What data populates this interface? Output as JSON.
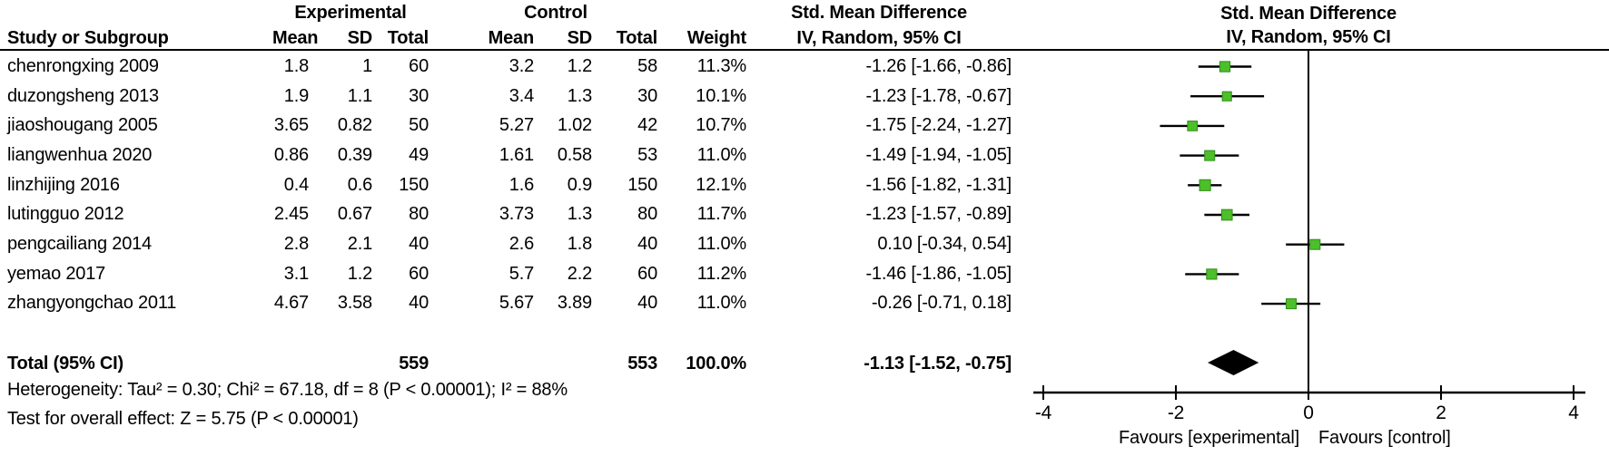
{
  "header": {
    "group_experimental": "Experimental",
    "group_control": "Control",
    "study": "Study or Subgroup",
    "mean": "Mean",
    "sd": "SD",
    "total": "Total",
    "weight": "Weight",
    "smd_line1": "Std. Mean Difference",
    "smd_line2": "IV, Random, 95% CI",
    "plot_line1": "Std. Mean Difference",
    "plot_line2": "IV, Random, 95% CI"
  },
  "chart_data": {
    "type": "forest",
    "effect_measure": "Std. Mean Difference",
    "model": "IV, Random, 95% CI",
    "axis": {
      "ticks": [
        -4,
        -2,
        0,
        2,
        4
      ],
      "xlim": [
        -4.3,
        4.5
      ],
      "favours_left": "Favours [experimental]",
      "favours_right": "Favours [control]"
    },
    "marker_color": "#4cbf2a",
    "marker_border": "#2f8c17",
    "diamond_color": "#000000",
    "studies": [
      {
        "label": "chenrongxing 2009",
        "mean_e": "1.8",
        "sd_e": "1",
        "total_e": "60",
        "mean_c": "3.2",
        "sd_c": "1.2",
        "total_c": "58",
        "weight": "11.3%",
        "weight_pct": 11.3,
        "ci_text": "-1.26 [-1.66, -0.86]",
        "smd": -1.26,
        "lo": -1.66,
        "hi": -0.86
      },
      {
        "label": "duzongsheng 2013",
        "mean_e": "1.9",
        "sd_e": "1.1",
        "total_e": "30",
        "mean_c": "3.4",
        "sd_c": "1.3",
        "total_c": "30",
        "weight": "10.1%",
        "weight_pct": 10.1,
        "ci_text": "-1.23 [-1.78, -0.67]",
        "smd": -1.23,
        "lo": -1.78,
        "hi": -0.67
      },
      {
        "label": "jiaoshougang 2005",
        "mean_e": "3.65",
        "sd_e": "0.82",
        "total_e": "50",
        "mean_c": "5.27",
        "sd_c": "1.02",
        "total_c": "42",
        "weight": "10.7%",
        "weight_pct": 10.7,
        "ci_text": "-1.75 [-2.24, -1.27]",
        "smd": -1.75,
        "lo": -2.24,
        "hi": -1.27
      },
      {
        "label": "liangwenhua 2020",
        "mean_e": "0.86",
        "sd_e": "0.39",
        "total_e": "49",
        "mean_c": "1.61",
        "sd_c": "0.58",
        "total_c": "53",
        "weight": "11.0%",
        "weight_pct": 11.0,
        "ci_text": "-1.49 [-1.94, -1.05]",
        "smd": -1.49,
        "lo": -1.94,
        "hi": -1.05
      },
      {
        "label": "linzhijing 2016",
        "mean_e": "0.4",
        "sd_e": "0.6",
        "total_e": "150",
        "mean_c": "1.6",
        "sd_c": "0.9",
        "total_c": "150",
        "weight": "12.1%",
        "weight_pct": 12.1,
        "ci_text": "-1.56 [-1.82, -1.31]",
        "smd": -1.56,
        "lo": -1.82,
        "hi": -1.31
      },
      {
        "label": "lutingguo 2012",
        "mean_e": "2.45",
        "sd_e": "0.67",
        "total_e": "80",
        "mean_c": "3.73",
        "sd_c": "1.3",
        "total_c": "80",
        "weight": "11.7%",
        "weight_pct": 11.7,
        "ci_text": "-1.23 [-1.57, -0.89]",
        "smd": -1.23,
        "lo": -1.57,
        "hi": -0.89
      },
      {
        "label": "pengcailiang 2014",
        "mean_e": "2.8",
        "sd_e": "2.1",
        "total_e": "40",
        "mean_c": "2.6",
        "sd_c": "1.8",
        "total_c": "40",
        "weight": "11.0%",
        "weight_pct": 11.0,
        "ci_text": "0.10 [-0.34, 0.54]",
        "smd": 0.1,
        "lo": -0.34,
        "hi": 0.54
      },
      {
        "label": "yemao 2017",
        "mean_e": "3.1",
        "sd_e": "1.2",
        "total_e": "60",
        "mean_c": "5.7",
        "sd_c": "2.2",
        "total_c": "60",
        "weight": "11.2%",
        "weight_pct": 11.2,
        "ci_text": "-1.46 [-1.86, -1.05]",
        "smd": -1.46,
        "lo": -1.86,
        "hi": -1.05
      },
      {
        "label": "zhangyongchao 2011",
        "mean_e": "4.67",
        "sd_e": "3.58",
        "total_e": "40",
        "mean_c": "5.67",
        "sd_c": "3.89",
        "total_c": "40",
        "weight": "11.0%",
        "weight_pct": 11.0,
        "ci_text": "-0.26 [-0.71, 0.18]",
        "smd": -0.26,
        "lo": -0.71,
        "hi": 0.18
      }
    ],
    "total": {
      "label": "Total (95% CI)",
      "total_e": "559",
      "total_c": "553",
      "weight": "100.0%",
      "ci_text": "-1.13 [-1.52, -0.75]",
      "smd": -1.13,
      "lo": -1.52,
      "hi": -0.75
    },
    "footnotes": {
      "heterogeneity": "Heterogeneity: Tau² = 0.30; Chi² = 67.18, df = 8 (P < 0.00001); I² = 88%",
      "overall_effect": "Test for overall effect: Z = 5.75 (P < 0.00001)"
    }
  }
}
